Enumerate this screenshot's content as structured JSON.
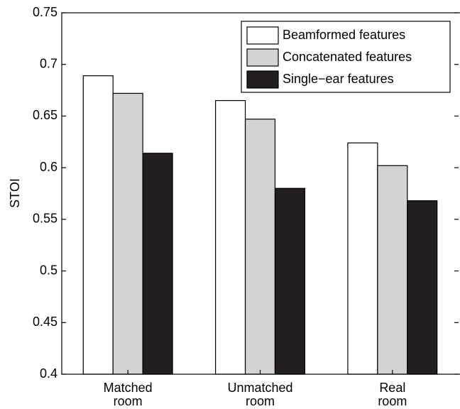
{
  "chart_data": {
    "type": "bar",
    "y_label": "STOI",
    "categories": [
      [
        "Matched",
        "room"
      ],
      [
        "Unmatched",
        "room"
      ],
      [
        "Real",
        "room"
      ]
    ],
    "series": [
      {
        "name": "Beamformed features",
        "color": "#ffffff",
        "values": [
          0.689,
          0.665,
          0.624
        ]
      },
      {
        "name": "Concatenated features",
        "color": "#d3d3d3",
        "values": [
          0.672,
          0.647,
          0.602
        ]
      },
      {
        "name": "Single−ear features",
        "color": "#231f20",
        "values": [
          0.614,
          0.58,
          0.568
        ]
      }
    ],
    "ylim": [
      0.4,
      0.75
    ],
    "yticks": [
      0.4,
      0.45,
      0.5,
      0.55,
      0.6,
      0.65,
      0.7,
      0.75
    ],
    "legend": "upper right",
    "grid": false
  }
}
